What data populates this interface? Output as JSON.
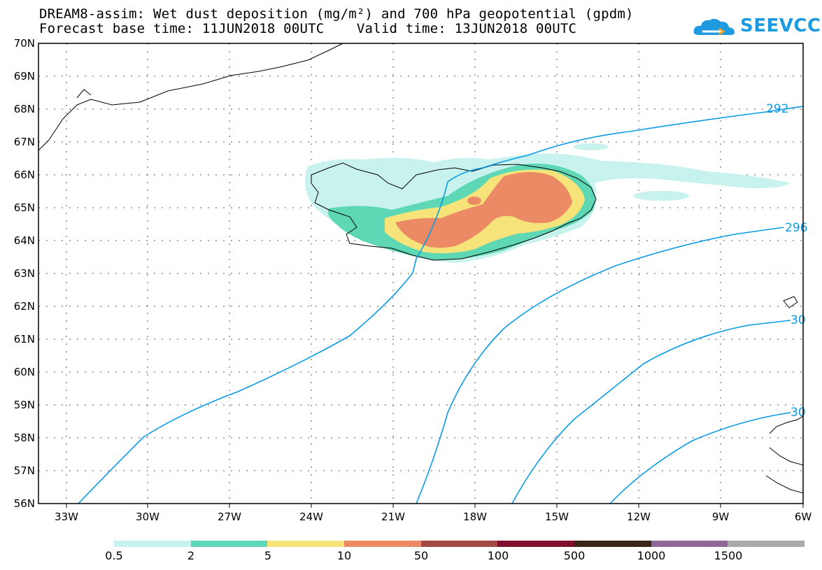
{
  "title": {
    "line1": "DREAM8-assim: Wet dust deposition (mg/m²) and 700 hPa geopotential (gpdm)",
    "line2": "Forecast base time: 11JUN2018 00UTC    Valid time: 13JUN2018 00UTC"
  },
  "logo": {
    "text": "SEEVCCC",
    "icon": "cloud-icon",
    "color": "#1e9be0"
  },
  "map": {
    "lat_labels": [
      "70N",
      "69N",
      "68N",
      "67N",
      "66N",
      "65N",
      "64N",
      "63N",
      "62N",
      "61N",
      "60N",
      "59N",
      "58N",
      "57N",
      "56N"
    ],
    "lon_labels": [
      "33W",
      "30W",
      "27W",
      "24W",
      "21W",
      "18W",
      "15W",
      "12W",
      "9W",
      "6W"
    ],
    "contour_color": "#0a9be6",
    "contour_labels": [
      "292",
      "296",
      "30",
      "30"
    ]
  },
  "legend": {
    "colors": [
      "#c8f2ee",
      "#5ed8b4",
      "#f6e37a",
      "#ec8a66",
      "#a34a44",
      "#7e0f2e",
      "#3a2418",
      "#8f6898",
      "#aaaaaa"
    ],
    "labels": [
      "0.5",
      "2",
      "5",
      "10",
      "50",
      "100",
      "500",
      "1000",
      "1500"
    ]
  }
}
